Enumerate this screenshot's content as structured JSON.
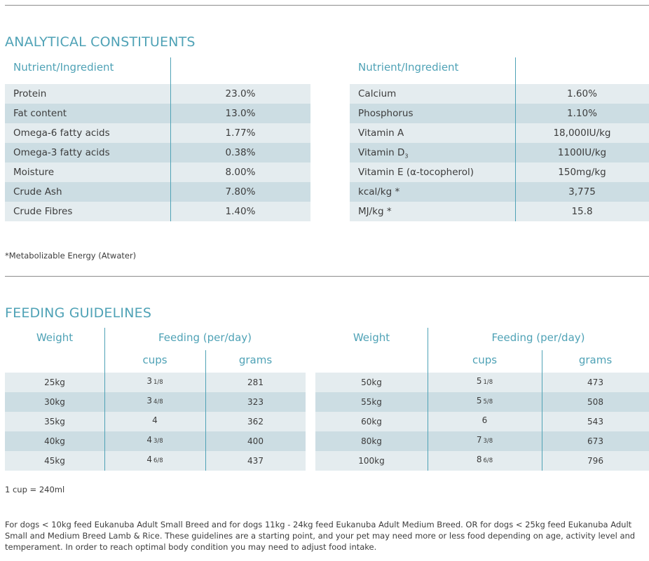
{
  "analytical": {
    "title": "ANALYTICAL CONSTITUENTS",
    "header_label": "Nutrient/Ingredient",
    "left_rows": [
      {
        "name": "Protein",
        "value": "23.0%"
      },
      {
        "name": "Fat content",
        "value": "13.0%"
      },
      {
        "name": "Omega-6 fatty acids",
        "value": "1.77%"
      },
      {
        "name": "Omega-3 fatty acids",
        "value": "0.38%"
      },
      {
        "name": "Moisture",
        "value": "8.00%"
      },
      {
        "name": "Crude Ash",
        "value": "7.80%"
      },
      {
        "name": "Crude Fibres",
        "value": "1.40%"
      }
    ],
    "right_rows": [
      {
        "name": "Calcium",
        "value": "1.60%"
      },
      {
        "name": "Phosphorus",
        "value": "1.10%"
      },
      {
        "name": "Vitamin A",
        "value": "18,000IU/kg"
      },
      {
        "name": "Vitamin D",
        "sub": "3",
        "value": "1100IU/kg"
      },
      {
        "name": "Vitamin E (α-tocopherol)",
        "value": "150mg/kg"
      },
      {
        "name": "kcal/kg *",
        "value": "3,775"
      },
      {
        "name": "MJ/kg *",
        "value": "15.8"
      }
    ],
    "footnote": "*Metabolizable Energy (Atwater)"
  },
  "feeding": {
    "title": "FEEDING GUIDELINES",
    "weight_label": "Weight",
    "feeding_label": "Feeding (per/day)",
    "cups_label": "cups",
    "grams_label": "grams",
    "left_rows": [
      {
        "weight": "25kg",
        "cups_whole": "3",
        "cups_frac": "1/8",
        "grams": "281"
      },
      {
        "weight": "30kg",
        "cups_whole": "3",
        "cups_frac": "4/8",
        "grams": "323"
      },
      {
        "weight": "35kg",
        "cups_whole": "4",
        "cups_frac": "",
        "grams": "362"
      },
      {
        "weight": "40kg",
        "cups_whole": "4",
        "cups_frac": "3/8",
        "grams": "400"
      },
      {
        "weight": "45kg",
        "cups_whole": "4",
        "cups_frac": "6/8",
        "grams": "437"
      }
    ],
    "right_rows": [
      {
        "weight": "50kg",
        "cups_whole": "5",
        "cups_frac": "1/8",
        "grams": "473"
      },
      {
        "weight": "55kg",
        "cups_whole": "5",
        "cups_frac": "5/8",
        "grams": "508"
      },
      {
        "weight": "60kg",
        "cups_whole": "6",
        "cups_frac": "",
        "grams": "543"
      },
      {
        "weight": "80kg",
        "cups_whole": "7",
        "cups_frac": "3/8",
        "grams": "673"
      },
      {
        "weight": "100kg",
        "cups_whole": "8",
        "cups_frac": "6/8",
        "grams": "796"
      }
    ],
    "cup_note": "1 cup = 240ml",
    "paragraph": "For dogs < 10kg feed Eukanuba Adult Small Breed and for dogs 11kg - 24kg feed Eukanuba Adult Medium Breed. OR for dogs < 25kg feed Eukanuba Adult Small and Medium Breed Lamb & Rice. These guidelines are a starting point, and your pet may need more or less food depending on age, activity level and temperament. In order to reach optimal body condition you may need to adjust food intake."
  },
  "colors": {
    "accent": "#4fa2b6",
    "row_light": "#e4ecef",
    "row_dark": "#ccdde3",
    "text": "#3c3c3c",
    "rule": "#8c8c8c"
  }
}
